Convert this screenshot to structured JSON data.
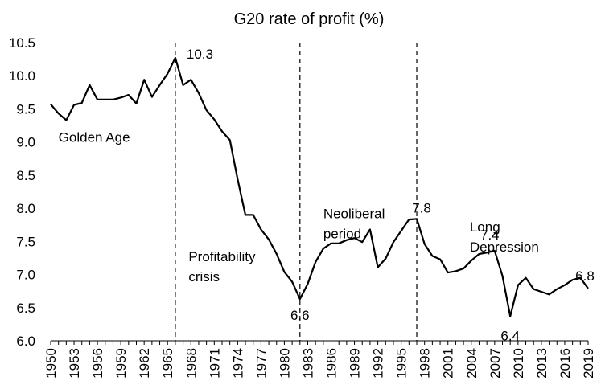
{
  "chart_data": {
    "type": "line",
    "title": "G20 rate of profit (%)",
    "xlabel": "",
    "ylabel": "",
    "ylim": [
      6.0,
      10.5
    ],
    "xlim": [
      1950,
      2019
    ],
    "yticks": [
      "6.0",
      "6.5",
      "7.0",
      "7.5",
      "8.0",
      "8.5",
      "9.0",
      "9.5",
      "10.0",
      "10.5"
    ],
    "xticks": [
      "1950",
      "1953",
      "1956",
      "1959",
      "1962",
      "1965",
      "1968",
      "1971",
      "1974",
      "1977",
      "1980",
      "1983",
      "1986",
      "1989",
      "1992",
      "1995",
      "1998",
      "2001",
      "2004",
      "2007",
      "2010",
      "2013",
      "2016",
      "2019"
    ],
    "grid": false,
    "legend": "none",
    "line_color": "#000000",
    "x": [
      1950,
      1951,
      1952,
      1953,
      1954,
      1955,
      1956,
      1957,
      1958,
      1959,
      1960,
      1961,
      1962,
      1963,
      1964,
      1965,
      1966,
      1967,
      1968,
      1969,
      1970,
      1971,
      1972,
      1973,
      1974,
      1975,
      1976,
      1977,
      1978,
      1979,
      1980,
      1981,
      1982,
      1983,
      1984,
      1985,
      1986,
      1987,
      1988,
      1989,
      1990,
      1991,
      1992,
      1993,
      1994,
      1995,
      1996,
      1997,
      1998,
      1999,
      2000,
      2001,
      2002,
      2003,
      2004,
      2005,
      2006,
      2007,
      2008,
      2009,
      2010,
      2011,
      2012,
      2013,
      2014,
      2015,
      2016,
      2017,
      2018,
      2019
    ],
    "values": [
      9.57,
      9.43,
      9.33,
      9.56,
      9.59,
      9.86,
      9.64,
      9.64,
      9.64,
      9.67,
      9.71,
      9.58,
      9.94,
      9.68,
      9.86,
      10.03,
      10.27,
      9.86,
      9.94,
      9.74,
      9.48,
      9.34,
      9.16,
      9.03,
      8.44,
      7.9,
      7.9,
      7.68,
      7.53,
      7.31,
      7.04,
      6.89,
      6.63,
      6.86,
      7.19,
      7.39,
      7.47,
      7.47,
      7.52,
      7.55,
      7.49,
      7.68,
      7.11,
      7.24,
      7.49,
      7.66,
      7.83,
      7.84,
      7.46,
      7.28,
      7.23,
      7.03,
      7.05,
      7.09,
      7.21,
      7.31,
      7.33,
      7.36,
      6.98,
      6.37,
      6.84,
      6.95,
      6.78,
      6.74,
      6.7,
      6.78,
      6.84,
      6.92,
      6.95,
      6.79
    ],
    "vlines": [
      1966,
      1982,
      1997
    ],
    "point_labels": [
      {
        "text": "10.3",
        "x": 1966
      },
      {
        "text": "6.6",
        "x": 1982
      },
      {
        "text": "7.8",
        "x": 1997
      },
      {
        "text": "7.4",
        "x": 2007
      },
      {
        "text": "6.4",
        "x": 2009
      },
      {
        "text": "6.8",
        "x": 2019
      }
    ],
    "annotations": [
      {
        "lines": [
          "Golden Age"
        ],
        "x": 1951,
        "y": 9.0
      },
      {
        "lines": [
          "Profitability",
          "crisis"
        ],
        "x": 1967.7,
        "y": 7.2
      },
      {
        "lines": [
          "Neoliberal",
          "period"
        ],
        "x": 1985,
        "y": 7.85
      },
      {
        "lines": [
          "Long",
          "Depression"
        ],
        "x": 2003.8,
        "y": 7.65
      }
    ]
  }
}
